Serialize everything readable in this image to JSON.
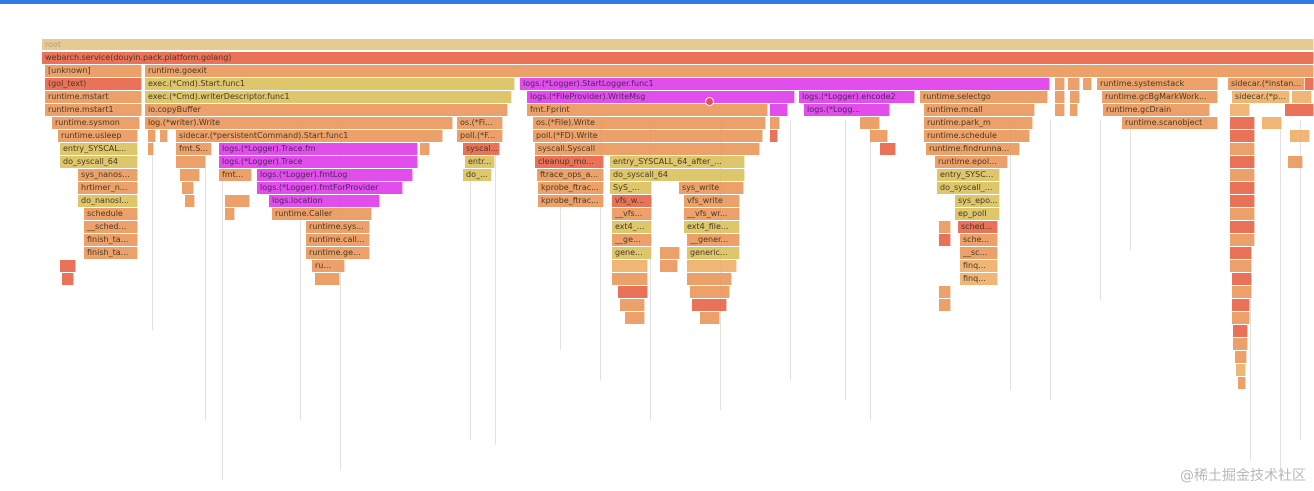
{
  "colors": {
    "root": "#e6c58b",
    "red": "#e8674a",
    "orange": "#ec9a5e",
    "lorange": "#eeb06a",
    "yellow": "#dcc261",
    "magenta": "#e040ea",
    "accent": "#2f7be0"
  },
  "frames": [
    {
      "label": "root",
      "color": "root"
    },
    {
      "label": "webarch.service(douyin.pack.platform.golang)",
      "color": "red"
    },
    {
      "label": "[unknown]",
      "color": "orange"
    },
    {
      "label": "runtime.goexit",
      "color": "orange"
    },
    {
      "label": "(gol_text)",
      "color": "red"
    },
    {
      "label": "exec.(*Cmd).Start.func1",
      "color": "yellow"
    },
    {
      "label": "logs.(*Logger).StartLogger.func1",
      "color": "magenta"
    },
    {
      "label": "runtime.systemstack",
      "color": "orange"
    },
    {
      "label": "sidecar.(*instan...",
      "color": "orange"
    },
    {
      "label": "runtime.mstart",
      "color": "orange"
    },
    {
      "label": "exec.(*Cmd).writerDescriptor.func1",
      "color": "yellow"
    },
    {
      "label": "logs.(*FileProvider).WriteMsg",
      "color": "magenta"
    },
    {
      "label": "logs.(*Logger).encode2",
      "color": "magenta"
    },
    {
      "label": "runtime.selectgo",
      "color": "orange"
    },
    {
      "label": "runtime.gcBgMarkWork...",
      "color": "orange"
    },
    {
      "label": "sidecar.(*p...",
      "color": "lorange"
    },
    {
      "label": "runtime.mstart1",
      "color": "orange"
    },
    {
      "label": "io.copyBuffer",
      "color": "orange"
    },
    {
      "label": "fmt.Fprint",
      "color": "orange"
    },
    {
      "label": "logs.(*Logg...",
      "color": "magenta"
    },
    {
      "label": "runtime.mcall",
      "color": "orange"
    },
    {
      "label": "runtime.gcDrain",
      "color": "orange"
    },
    {
      "label": "runtime.sysmon",
      "color": "orange"
    },
    {
      "label": "log.(*writer).Write",
      "color": "orange"
    },
    {
      "label": "os.(*Fi...",
      "color": "orange"
    },
    {
      "label": "os.(*File).Write",
      "color": "orange"
    },
    {
      "label": "runtime.park_m",
      "color": "orange"
    },
    {
      "label": "runtime.scanobject",
      "color": "orange"
    },
    {
      "label": "runtime.usleep",
      "color": "orange"
    },
    {
      "label": "sidecar.(*persistentCommand).Start.func1",
      "color": "orange"
    },
    {
      "label": "poll.(*F...",
      "color": "orange"
    },
    {
      "label": "poll.(*FD).Write",
      "color": "orange"
    },
    {
      "label": "runtime.schedule",
      "color": "orange"
    },
    {
      "label": "entry_SYSCAL...",
      "color": "yellow"
    },
    {
      "label": "fmt.S...",
      "color": "orange"
    },
    {
      "label": "logs.(*Logger).Trace.fm",
      "color": "magenta"
    },
    {
      "label": "syscal...",
      "color": "red"
    },
    {
      "label": "syscall.Syscall",
      "color": "orange"
    },
    {
      "label": "runtime.findrunna...",
      "color": "orange"
    },
    {
      "label": "do_syscall_64",
      "color": "yellow"
    },
    {
      "label": "logs.(*Logger).Trace",
      "color": "magenta"
    },
    {
      "label": "entr...",
      "color": "yellow"
    },
    {
      "label": "cleanup_mo...",
      "color": "red"
    },
    {
      "label": "entry_SYSCALL_64_after_...",
      "color": "yellow"
    },
    {
      "label": "runtime.epol...",
      "color": "orange"
    },
    {
      "label": "sys_nanos...",
      "color": "orange"
    },
    {
      "label": "fmt...",
      "color": "orange"
    },
    {
      "label": "logs.(*Logger).fmtLog",
      "color": "magenta"
    },
    {
      "label": "do_...",
      "color": "yellow"
    },
    {
      "label": "ftrace_ops_a...",
      "color": "orange"
    },
    {
      "label": "do_syscall_64",
      "color": "yellow"
    },
    {
      "label": "entry_SYSC...",
      "color": "yellow"
    },
    {
      "label": "hrtimer_n...",
      "color": "orange"
    },
    {
      "label": "logs.(*Logger).fmtForProvider",
      "color": "magenta"
    },
    {
      "label": "kprobe_ftrac...",
      "color": "orange"
    },
    {
      "label": "SyS_...",
      "color": "yellow"
    },
    {
      "label": "sys_write",
      "color": "orange"
    },
    {
      "label": "do_syscall_...",
      "color": "yellow"
    },
    {
      "label": "do_nanosl...",
      "color": "yellow"
    },
    {
      "label": "logs.location",
      "color": "magenta"
    },
    {
      "label": "kprobe_ftrac...",
      "color": "orange"
    },
    {
      "label": "vfs_w...",
      "color": "red"
    },
    {
      "label": "vfs_write",
      "color": "orange"
    },
    {
      "label": "sys_epo...",
      "color": "yellow"
    },
    {
      "label": "schedule",
      "color": "orange"
    },
    {
      "label": "runtime.Caller",
      "color": "orange"
    },
    {
      "label": "__vfs...",
      "color": "orange"
    },
    {
      "label": "__vfs_wr...",
      "color": "orange"
    },
    {
      "label": "ep_poll",
      "color": "yellow"
    },
    {
      "label": "__sched...",
      "color": "orange"
    },
    {
      "label": "runtime.sys...",
      "color": "orange"
    },
    {
      "label": "ext4_...",
      "color": "yellow"
    },
    {
      "label": "ext4_file...",
      "color": "yellow"
    },
    {
      "label": "sched...",
      "color": "red"
    },
    {
      "label": "finish_ta...",
      "color": "orange"
    },
    {
      "label": "runtime.call...",
      "color": "orange"
    },
    {
      "label": "__ge...",
      "color": "orange"
    },
    {
      "label": "__gener...",
      "color": "orange"
    },
    {
      "label": "sche...",
      "color": "orange"
    },
    {
      "label": "finish_ta...",
      "color": "orange"
    },
    {
      "label": "runtime.ge...",
      "color": "orange"
    },
    {
      "label": "gene...",
      "color": "yellow"
    },
    {
      "label": "generic...",
      "color": "yellow"
    },
    {
      "label": "__sc...",
      "color": "orange"
    },
    {
      "label": "ru...",
      "color": "orange"
    },
    {
      "label": "finq...",
      "color": "lorange"
    },
    {
      "label": "finq...",
      "color": "lorange"
    }
  ],
  "watermark": "@稀土掘金技术社区"
}
